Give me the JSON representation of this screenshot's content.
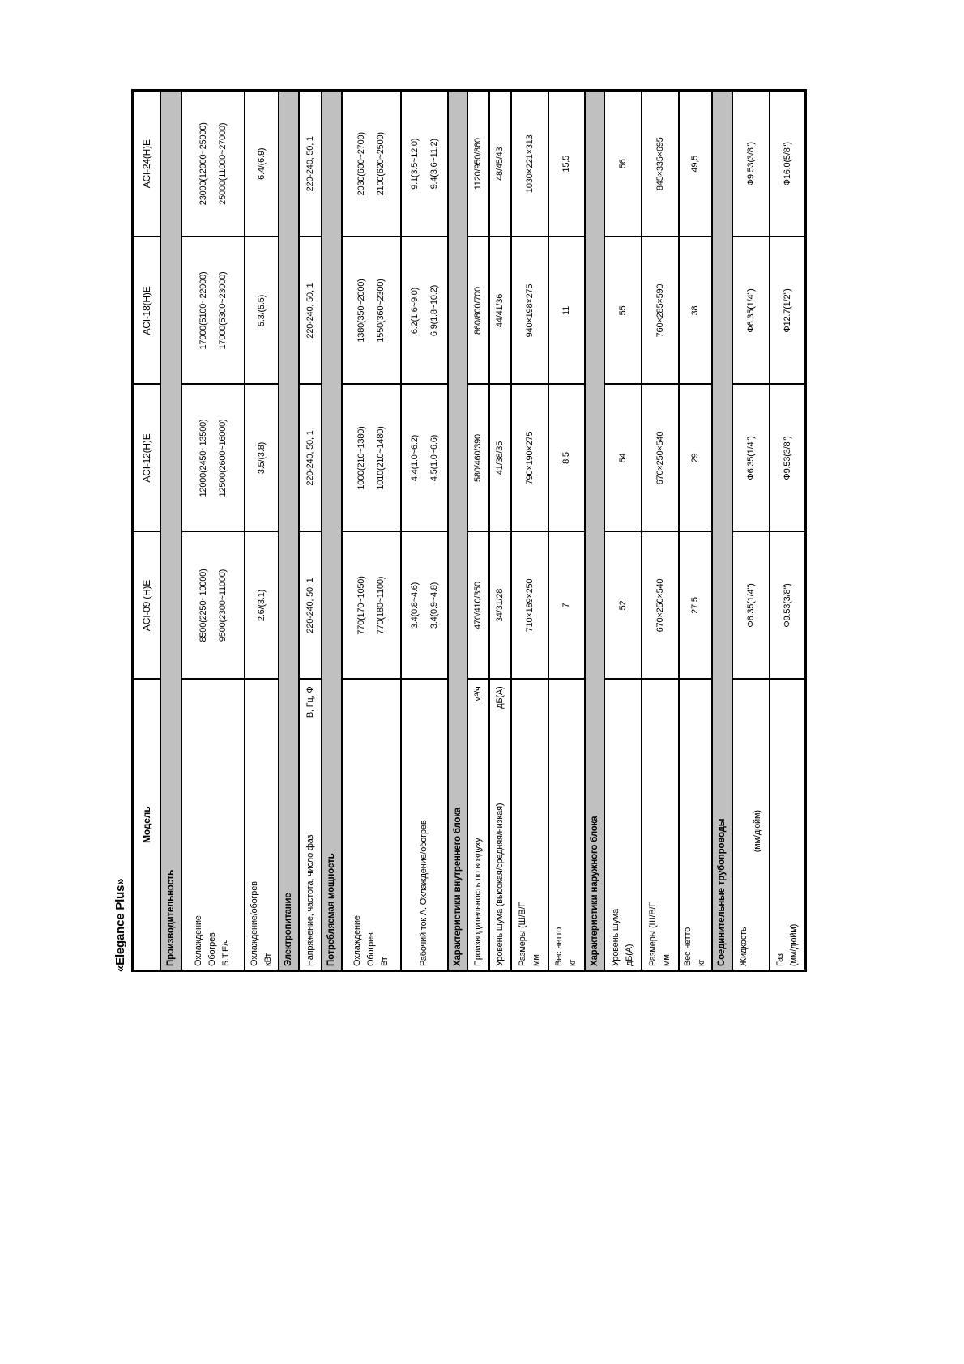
{
  "title": "«Elegance Plus»",
  "table": {
    "header": {
      "label": "Модель",
      "models": [
        "ACI-09 (H)E",
        "ACI-12(H)E",
        "ACI-18(H)E",
        "ACI-24(H)E"
      ]
    },
    "rows": [
      {
        "type": "section",
        "label": "Производительность"
      },
      {
        "type": "data",
        "label": [
          "Охлаждение",
          "Обогрев",
          "Б.Т.Е/ч"
        ],
        "values": [
          [
            "8500(2250~10000)",
            "9500(2300~11000)"
          ],
          [
            "12000(2450~13500)",
            "12500(2600~16000)"
          ],
          [
            "17000(5100~22000)",
            "17000(5300~23000)"
          ],
          [
            "23000(12000~25000)",
            "25000(11000~27000)"
          ]
        ]
      },
      {
        "type": "data",
        "label": [
          "Охлаждение/обогрев",
          "кВт"
        ],
        "values": [
          "2.6/(3.1)",
          "3.5/(3.8)",
          "5.3/(5.5)",
          "6.4/(6.9)"
        ]
      },
      {
        "type": "section",
        "label": "Электропитание"
      },
      {
        "type": "data",
        "label": [
          "Напряжение, частота, число фаз"
        ],
        "unit": "В, Гц, Ф",
        "values": [
          "220-240, 50, 1",
          "220-240, 50, 1",
          "220-240, 50, 1",
          "220-240, 50, 1"
        ]
      },
      {
        "type": "section",
        "label": "Потребляемая мощность"
      },
      {
        "type": "data",
        "label": [
          "Охлаждение",
          "Обогрев",
          "Вт"
        ],
        "values": [
          [
            "770(170~1050)",
            "770(180~1100)"
          ],
          [
            "1000(210~1380)",
            "1010(210~1480)"
          ],
          [
            "1380(350~2000)",
            "1550(360~2300)"
          ],
          [
            "2030(600~2700)",
            "2100(620~2500)"
          ]
        ]
      },
      {
        "type": "data",
        "label": [
          "Рабочий ток А. Охлаждение/обогрев"
        ],
        "values": [
          [
            "3.4(0.8~4.6)",
            "3.4(0.9~4.8)"
          ],
          [
            "4.4(1.0~6.2)",
            "4.5(1.0~6.6)"
          ],
          [
            "6.2(1.6~9.0)",
            "6.9(1.8~10.2)"
          ],
          [
            "9.1(3.5~12.0)",
            "9.4(3.6~11.2)"
          ]
        ]
      },
      {
        "type": "section",
        "label": "Характеристики внутреннего блока"
      },
      {
        "type": "data",
        "label": [
          "Производительность по воздуху"
        ],
        "unit": "м³/ч",
        "values": [
          "470/410/350",
          "580/460/390",
          "860/800/700",
          "1120/950/860"
        ]
      },
      {
        "type": "data",
        "label": [
          "Уровень шума (высокая/средняя/низкая)"
        ],
        "unit": "дБ(А)",
        "values": [
          "34/31/28",
          "41/38/35",
          "44/41/36",
          "48/45/43"
        ]
      },
      {
        "type": "data",
        "label": [
          "Размеры (Ш/В/Г",
          "мм"
        ],
        "values": [
          "710×189×250",
          "790×190×275",
          "940×198×275",
          "1030×221×313"
        ]
      },
      {
        "type": "data",
        "label": [
          "Вес нетто",
          "кг"
        ],
        "values": [
          "7",
          "8,5",
          "11",
          "15,5"
        ]
      },
      {
        "type": "section",
        "label": "Характеристики наружного блока"
      },
      {
        "type": "data",
        "label": [
          "Уровень шума",
          "дБ(А)"
        ],
        "values": [
          "52",
          "54",
          "55",
          "56"
        ]
      },
      {
        "type": "data",
        "label": [
          "Размеры (Ш/В/Г",
          "мм"
        ],
        "values": [
          "670×250×540",
          "670×250×540",
          "760×285×590",
          "845×335×695"
        ]
      },
      {
        "type": "data",
        "label": [
          "Вес нетто",
          "кг"
        ],
        "values": [
          "27,5",
          "29",
          "38",
          "49,5"
        ]
      },
      {
        "type": "section",
        "label": "Соединительные трубопроводы"
      },
      {
        "type": "data",
        "label": [
          "Жидкость",
          "(мм/дюйм)"
        ],
        "line2_center": true,
        "values": [
          "Ф6.35(1/4\")",
          "Ф6.35(1/4\")",
          "Ф6.35(1/4\")",
          "Ф9.53(3/8\")"
        ]
      },
      {
        "type": "data",
        "label": [
          "Газ",
          "(мм/дюйм)"
        ],
        "values": [
          "Ф9.53(3/8\")",
          "Ф9.53(3/8\")",
          "Ф12.7(1/2\")",
          "Ф16.0(5/8\")"
        ]
      }
    ]
  }
}
